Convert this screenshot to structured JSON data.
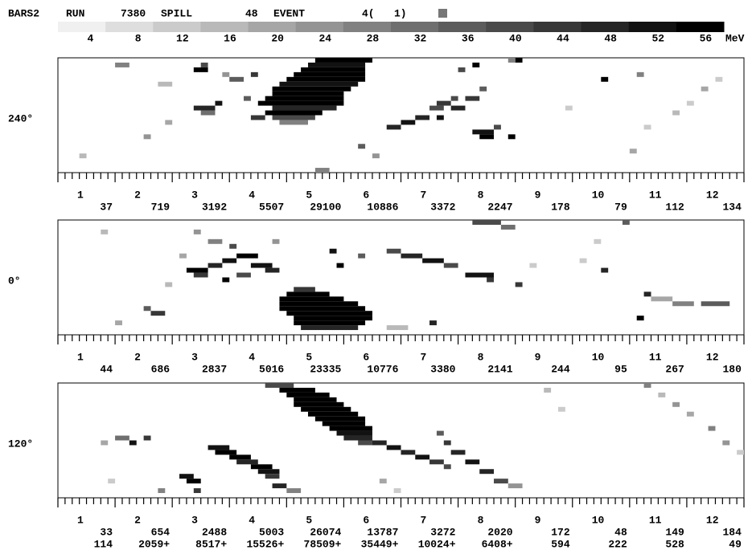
{
  "header": {
    "detector": "BARS2",
    "run_label": "RUN",
    "run": 7380,
    "spill_label": "SPILL",
    "spill": 48,
    "event_label": "EVENT",
    "event": "4(",
    "subevent": "1)"
  },
  "scale": {
    "levels": [
      4,
      8,
      12,
      16,
      20,
      24,
      28,
      32,
      36,
      40,
      44,
      48,
      52,
      56
    ],
    "unit": "MeV"
  },
  "modules": [
    1,
    2,
    3,
    4,
    5,
    6,
    7,
    8,
    9,
    10,
    11,
    12
  ],
  "panels": [
    {
      "angle": "240°",
      "sums": [
        37,
        719,
        3192,
        5507,
        29100,
        10886,
        3372,
        2247,
        178,
        79,
        112,
        134
      ],
      "hits": [
        [
          36,
          0,
          8,
          56
        ],
        [
          35,
          1,
          8,
          52
        ],
        [
          34,
          2,
          9,
          56
        ],
        [
          33,
          3,
          10,
          56
        ],
        [
          32,
          4,
          11,
          56
        ],
        [
          31,
          5,
          11,
          52
        ],
        [
          30,
          6,
          11,
          56
        ],
        [
          30,
          7,
          10,
          56
        ],
        [
          29,
          8,
          11,
          56
        ],
        [
          28,
          9,
          12,
          56
        ],
        [
          30,
          10,
          9,
          48
        ],
        [
          29,
          11,
          8,
          56
        ],
        [
          30,
          12,
          6,
          40
        ],
        [
          31,
          13,
          4,
          28
        ],
        [
          8,
          1,
          2,
          28
        ],
        [
          19,
          2,
          2,
          56
        ],
        [
          20,
          1,
          1,
          40
        ],
        [
          24,
          4,
          2,
          36
        ],
        [
          27,
          3,
          1,
          44
        ],
        [
          19,
          10,
          3,
          48
        ],
        [
          20,
          11,
          2,
          32
        ],
        [
          22,
          9,
          1,
          52
        ],
        [
          15,
          13,
          1,
          20
        ],
        [
          23,
          3,
          1,
          24
        ],
        [
          14,
          5,
          2,
          16
        ],
        [
          27,
          12,
          2,
          44
        ],
        [
          26,
          8,
          1,
          36
        ],
        [
          46,
          14,
          2,
          48
        ],
        [
          48,
          13,
          2,
          52
        ],
        [
          50,
          12,
          2,
          48
        ],
        [
          52,
          10,
          2,
          40
        ],
        [
          53,
          9,
          2,
          44
        ],
        [
          55,
          8,
          1,
          40
        ],
        [
          53,
          12,
          1,
          52
        ],
        [
          55,
          10,
          2,
          48
        ],
        [
          57,
          8,
          2,
          44
        ],
        [
          59,
          6,
          1,
          36
        ],
        [
          58,
          1,
          1,
          56
        ],
        [
          56,
          2,
          1,
          40
        ],
        [
          64,
          0,
          1,
          56
        ],
        [
          63,
          0,
          1,
          28
        ],
        [
          58,
          15,
          3,
          52
        ],
        [
          59,
          16,
          2,
          56
        ],
        [
          63,
          16,
          1,
          56
        ],
        [
          61,
          14,
          1,
          40
        ],
        [
          76,
          4,
          1,
          56
        ],
        [
          81,
          3,
          1,
          28
        ],
        [
          88,
          9,
          1,
          12
        ],
        [
          86,
          11,
          1,
          16
        ],
        [
          90,
          6,
          1,
          20
        ],
        [
          92,
          4,
          1,
          12
        ],
        [
          82,
          14,
          1,
          12
        ],
        [
          80,
          19,
          1,
          20
        ],
        [
          71,
          10,
          1,
          12
        ],
        [
          3,
          20,
          1,
          16
        ],
        [
          12,
          16,
          1,
          24
        ],
        [
          36,
          23,
          2,
          28
        ],
        [
          42,
          18,
          1,
          36
        ],
        [
          44,
          20,
          1,
          24
        ]
      ]
    },
    {
      "angle": "0°",
      "sums": [
        44,
        686,
        2837,
        5016,
        23335,
        10776,
        3380,
        2141,
        244,
        95,
        267,
        180
      ],
      "hits": [
        [
          33,
          14,
          3,
          44
        ],
        [
          32,
          15,
          6,
          56
        ],
        [
          31,
          16,
          9,
          56
        ],
        [
          31,
          17,
          11,
          56
        ],
        [
          31,
          18,
          12,
          56
        ],
        [
          32,
          19,
          12,
          56
        ],
        [
          33,
          20,
          11,
          56
        ],
        [
          33,
          21,
          10,
          56
        ],
        [
          34,
          22,
          8,
          48
        ],
        [
          18,
          10,
          3,
          56
        ],
        [
          19,
          11,
          2,
          44
        ],
        [
          21,
          9,
          2,
          48
        ],
        [
          23,
          8,
          2,
          52
        ],
        [
          25,
          7,
          3,
          56
        ],
        [
          27,
          9,
          3,
          52
        ],
        [
          29,
          10,
          2,
          48
        ],
        [
          24,
          5,
          1,
          40
        ],
        [
          21,
          4,
          2,
          28
        ],
        [
          17,
          7,
          1,
          20
        ],
        [
          25,
          11,
          2,
          40
        ],
        [
          23,
          12,
          1,
          56
        ],
        [
          19,
          2,
          1,
          24
        ],
        [
          15,
          13,
          1,
          16
        ],
        [
          46,
          6,
          2,
          40
        ],
        [
          48,
          7,
          3,
          48
        ],
        [
          51,
          8,
          3,
          52
        ],
        [
          54,
          9,
          2,
          40
        ],
        [
          57,
          11,
          4,
          52
        ],
        [
          60,
          12,
          1,
          44
        ],
        [
          58,
          0,
          4,
          40
        ],
        [
          62,
          1,
          2,
          32
        ],
        [
          64,
          13,
          1,
          44
        ],
        [
          38,
          6,
          1,
          52
        ],
        [
          39,
          9,
          1,
          56
        ],
        [
          42,
          7,
          1,
          36
        ],
        [
          30,
          4,
          1,
          24
        ],
        [
          12,
          18,
          1,
          36
        ],
        [
          13,
          19,
          2,
          44
        ],
        [
          8,
          21,
          1,
          20
        ],
        [
          6,
          2,
          1,
          16
        ],
        [
          76,
          10,
          1,
          48
        ],
        [
          81,
          20,
          1,
          56
        ],
        [
          82,
          15,
          1,
          48
        ],
        [
          83,
          16,
          3,
          20
        ],
        [
          86,
          17,
          3,
          28
        ],
        [
          90,
          17,
          4,
          36
        ],
        [
          75,
          4,
          1,
          12
        ],
        [
          79,
          0,
          1,
          36
        ],
        [
          66,
          9,
          1,
          12
        ],
        [
          73,
          8,
          1,
          12
        ],
        [
          52,
          21,
          1,
          48
        ],
        [
          46,
          22,
          3,
          16
        ]
      ]
    },
    {
      "angle": "120°",
      "sums": [
        33,
        654,
        2488,
        5003,
        26074,
        13787,
        3272,
        2020,
        172,
        48,
        149,
        184
      ],
      "sums2": [
        114,
        "2059+",
        "8517+",
        "15526+",
        "78509+",
        "35449+",
        "10024+",
        "6408+",
        594,
        222,
        528,
        49
      ],
      "hits": [
        [
          29,
          0,
          4,
          40
        ],
        [
          31,
          1,
          5,
          56
        ],
        [
          32,
          2,
          6,
          56
        ],
        [
          33,
          3,
          6,
          56
        ],
        [
          33,
          4,
          7,
          56
        ],
        [
          34,
          5,
          7,
          56
        ],
        [
          35,
          6,
          7,
          56
        ],
        [
          36,
          7,
          7,
          56
        ],
        [
          37,
          8,
          6,
          56
        ],
        [
          38,
          9,
          6,
          56
        ],
        [
          39,
          10,
          5,
          52
        ],
        [
          40,
          11,
          4,
          48
        ],
        [
          42,
          12,
          2,
          40
        ],
        [
          44,
          12,
          2,
          48
        ],
        [
          46,
          13,
          2,
          52
        ],
        [
          48,
          14,
          2,
          48
        ],
        [
          50,
          15,
          2,
          52
        ],
        [
          52,
          16,
          2,
          44
        ],
        [
          54,
          17,
          1,
          40
        ],
        [
          53,
          10,
          1,
          36
        ],
        [
          54,
          12,
          1,
          44
        ],
        [
          55,
          14,
          2,
          48
        ],
        [
          57,
          16,
          2,
          52
        ],
        [
          59,
          18,
          2,
          48
        ],
        [
          61,
          20,
          2,
          40
        ],
        [
          63,
          21,
          2,
          24
        ],
        [
          21,
          13,
          3,
          52
        ],
        [
          22,
          14,
          3,
          56
        ],
        [
          24,
          15,
          3,
          56
        ],
        [
          25,
          16,
          3,
          48
        ],
        [
          27,
          17,
          3,
          56
        ],
        [
          28,
          18,
          3,
          52
        ],
        [
          29,
          19,
          2,
          44
        ],
        [
          30,
          21,
          2,
          48
        ],
        [
          17,
          19,
          2,
          52
        ],
        [
          18,
          20,
          2,
          56
        ],
        [
          19,
          22,
          1,
          44
        ],
        [
          8,
          11,
          2,
          32
        ],
        [
          10,
          12,
          1,
          52
        ],
        [
          12,
          11,
          1,
          44
        ],
        [
          6,
          12,
          1,
          20
        ],
        [
          14,
          22,
          1,
          28
        ],
        [
          7,
          20,
          1,
          12
        ],
        [
          32,
          22,
          2,
          28
        ],
        [
          45,
          20,
          1,
          20
        ],
        [
          47,
          22,
          1,
          12
        ],
        [
          82,
          0,
          1,
          28
        ],
        [
          84,
          2,
          1,
          16
        ],
        [
          86,
          4,
          1,
          24
        ],
        [
          88,
          6,
          1,
          20
        ],
        [
          91,
          9,
          1,
          28
        ],
        [
          93,
          12,
          1,
          24
        ],
        [
          95,
          14,
          1,
          12
        ],
        [
          70,
          5,
          1,
          12
        ],
        [
          68,
          1,
          1,
          16
        ]
      ]
    }
  ]
}
